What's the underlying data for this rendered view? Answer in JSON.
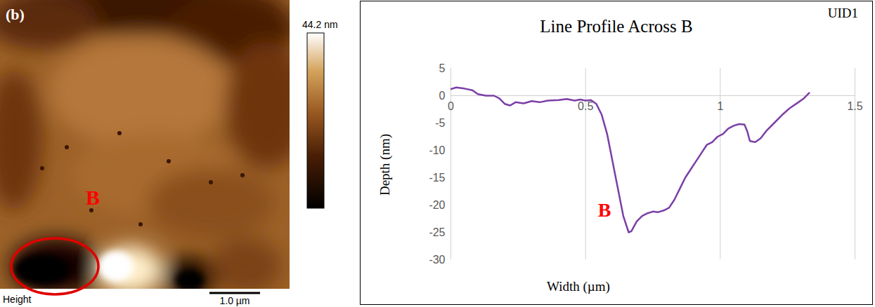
{
  "chart_data": {
    "type": "line",
    "title": "Line Profile Across B",
    "corner_label": "UID1",
    "x_label": "Width (µm)",
    "y_label": "Depth (nm)",
    "x": [
      0,
      0.02,
      0.05,
      0.08,
      0.1,
      0.13,
      0.16,
      0.18,
      0.2,
      0.22,
      0.24,
      0.27,
      0.3,
      0.33,
      0.36,
      0.4,
      0.43,
      0.46,
      0.48,
      0.5,
      0.52,
      0.54,
      0.56,
      0.58,
      0.6,
      0.62,
      0.64,
      0.66,
      0.67,
      0.69,
      0.71,
      0.73,
      0.75,
      0.77,
      0.79,
      0.81,
      0.83,
      0.85,
      0.87,
      0.89,
      0.91,
      0.93,
      0.95,
      0.97,
      0.99,
      1.01,
      1.03,
      1.05,
      1.07,
      1.09,
      1.1,
      1.11,
      1.13,
      1.15,
      1.17,
      1.2,
      1.23,
      1.26,
      1.29,
      1.31,
      1.33
    ],
    "values": [
      1.2,
      1.5,
      1.3,
      1.0,
      0.3,
      0,
      0,
      -0.5,
      -1.5,
      -1.8,
      -1.2,
      -1.4,
      -1.0,
      -1.2,
      -0.9,
      -0.8,
      -0.6,
      -0.9,
      -0.7,
      -0.9,
      -0.8,
      -1.5,
      -3.5,
      -7,
      -12,
      -17,
      -22,
      -25,
      -24.8,
      -23,
      -22,
      -21.5,
      -21.2,
      -21.3,
      -21,
      -20.5,
      -19,
      -17,
      -15,
      -13.5,
      -12,
      -10.5,
      -9,
      -8.5,
      -7.5,
      -7,
      -6,
      -5.5,
      -5.2,
      -5.3,
      -6.5,
      -8.3,
      -8.5,
      -7.8,
      -6.5,
      -5,
      -3.5,
      -2.2,
      -1.2,
      -0.5,
      0.5
    ],
    "color": "#7b3fa6",
    "xlim": [
      0,
      1.5
    ],
    "xticks": [
      0,
      0.5,
      1,
      1.5
    ],
    "ylim": [
      -30,
      5
    ],
    "yticks": [
      -30,
      -25,
      -20,
      -15,
      -10,
      -5,
      0,
      5
    ],
    "grid": true,
    "annotations": [
      {
        "text": "B",
        "x": 0.57,
        "y": -21,
        "color": "#ff0000"
      }
    ]
  },
  "image_panel": {
    "panel_label": "(b)",
    "marker": "B",
    "channel": "Height",
    "colorbar_max": {
      "value": 44.2,
      "label": "44.2 nm"
    },
    "scale_bar": {
      "value": 1.0,
      "label": "1.0 µm"
    }
  }
}
